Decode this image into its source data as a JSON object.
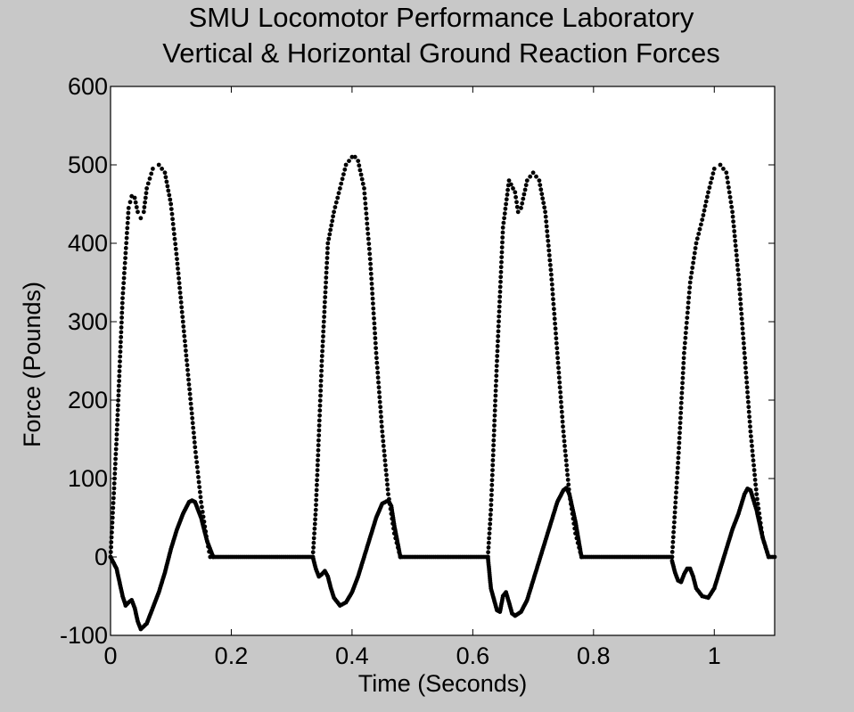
{
  "chart_data": {
    "type": "scatter",
    "title": [
      "SMU Locomotor Performance Laboratory",
      "Vertical & Horizontal Ground Reaction Forces"
    ],
    "xlabel": "Time (Seconds)",
    "ylabel": "Force (Pounds)",
    "xlim": [
      0,
      1.1
    ],
    "ylim": [
      -100,
      600
    ],
    "xticks": [
      0,
      0.2,
      0.4,
      0.6,
      0.8,
      1
    ],
    "xtick_labels": [
      "0",
      "0.2",
      "0.4",
      "0.6",
      "0.8",
      "1"
    ],
    "yticks": [
      -100,
      0,
      100,
      200,
      300,
      400,
      500,
      600
    ],
    "ytick_labels": [
      "-100",
      "0",
      "100",
      "200",
      "300",
      "400",
      "500",
      "600"
    ],
    "grid": false,
    "legend": "none",
    "marker_color": "#000000",
    "series": [
      {
        "role": "vertical",
        "stances": [
          {
            "x": [
              0.0,
              0.01,
              0.02,
              0.03,
              0.035,
              0.04,
              0.045,
              0.05,
              0.055,
              0.06,
              0.07,
              0.08,
              0.09,
              0.1,
              0.11,
              0.12,
              0.13,
              0.14,
              0.15,
              0.16,
              0.165
            ],
            "y": [
              0,
              150,
              330,
              445,
              460,
              458,
              440,
              432,
              440,
              470,
              495,
              500,
              490,
              450,
              380,
              300,
              220,
              140,
              70,
              20,
              0
            ]
          },
          {
            "x": [
              0.335,
              0.34,
              0.35,
              0.36,
              0.37,
              0.38,
              0.39,
              0.4,
              0.405,
              0.41,
              0.42,
              0.43,
              0.44,
              0.45,
              0.46,
              0.47,
              0.48
            ],
            "y": [
              0,
              60,
              250,
              400,
              440,
              470,
              500,
              510,
              510,
              505,
              470,
              380,
              260,
              160,
              80,
              30,
              0
            ]
          },
          {
            "x": [
              0.625,
              0.63,
              0.64,
              0.65,
              0.66,
              0.67,
              0.675,
              0.68,
              0.69,
              0.7,
              0.71,
              0.72,
              0.73,
              0.74,
              0.75,
              0.76,
              0.77,
              0.78
            ],
            "y": [
              0,
              60,
              250,
              420,
              480,
              465,
              440,
              445,
              480,
              490,
              480,
              440,
              360,
              260,
              160,
              80,
              30,
              0
            ]
          },
          {
            "x": [
              0.93,
              0.94,
              0.95,
              0.96,
              0.97,
              0.98,
              0.99,
              1.0,
              1.01,
              1.02,
              1.03,
              1.04,
              1.05,
              1.06,
              1.07,
              1.08,
              1.09
            ],
            "y": [
              0,
              120,
              260,
              350,
              400,
              430,
              465,
              495,
              500,
              490,
              440,
              360,
              260,
              160,
              80,
              25,
              0
            ]
          }
        ]
      },
      {
        "role": "horizontal",
        "stances": [
          {
            "x": [
              0.0,
              0.01,
              0.02,
              0.025,
              0.03,
              0.035,
              0.04,
              0.045,
              0.05,
              0.06,
              0.07,
              0.08,
              0.09,
              0.1,
              0.11,
              0.12,
              0.13,
              0.135,
              0.14,
              0.15,
              0.16,
              0.17
            ],
            "y": [
              0,
              -15,
              -50,
              -62,
              -58,
              -55,
              -65,
              -82,
              -92,
              -85,
              -65,
              -45,
              -20,
              10,
              35,
              55,
              70,
              72,
              70,
              50,
              20,
              0
            ]
          },
          {
            "x": [
              0.335,
              0.34,
              0.345,
              0.35,
              0.355,
              0.36,
              0.365,
              0.37,
              0.38,
              0.39,
              0.4,
              0.41,
              0.42,
              0.43,
              0.44,
              0.45,
              0.46,
              0.465,
              0.47,
              0.48
            ],
            "y": [
              0,
              -15,
              -25,
              -22,
              -18,
              -25,
              -40,
              -52,
              -62,
              -58,
              -45,
              -25,
              0,
              25,
              50,
              68,
              72,
              65,
              40,
              0
            ]
          },
          {
            "x": [
              0.625,
              0.63,
              0.64,
              0.645,
              0.65,
              0.655,
              0.66,
              0.665,
              0.67,
              0.68,
              0.69,
              0.7,
              0.71,
              0.72,
              0.73,
              0.74,
              0.75,
              0.755,
              0.76,
              0.77,
              0.78
            ],
            "y": [
              0,
              -40,
              -68,
              -70,
              -50,
              -45,
              -58,
              -72,
              -75,
              -70,
              -55,
              -30,
              -5,
              20,
              45,
              70,
              85,
              88,
              80,
              45,
              0
            ]
          },
          {
            "x": [
              0.93,
              0.935,
              0.94,
              0.945,
              0.95,
              0.955,
              0.96,
              0.965,
              0.97,
              0.98,
              0.99,
              1.0,
              1.01,
              1.02,
              1.03,
              1.04,
              1.05,
              1.055,
              1.06,
              1.07,
              1.08,
              1.09,
              1.1
            ],
            "y": [
              -5,
              -20,
              -30,
              -32,
              -22,
              -15,
              -15,
              -25,
              -40,
              -50,
              -52,
              -40,
              -15,
              10,
              35,
              55,
              80,
              87,
              85,
              60,
              25,
              0,
              0
            ]
          }
        ]
      }
    ],
    "flight_phases_y": 0,
    "flight_phases": [
      [
        0.17,
        0.335
      ],
      [
        0.48,
        0.625
      ],
      [
        0.78,
        0.93
      ]
    ]
  }
}
